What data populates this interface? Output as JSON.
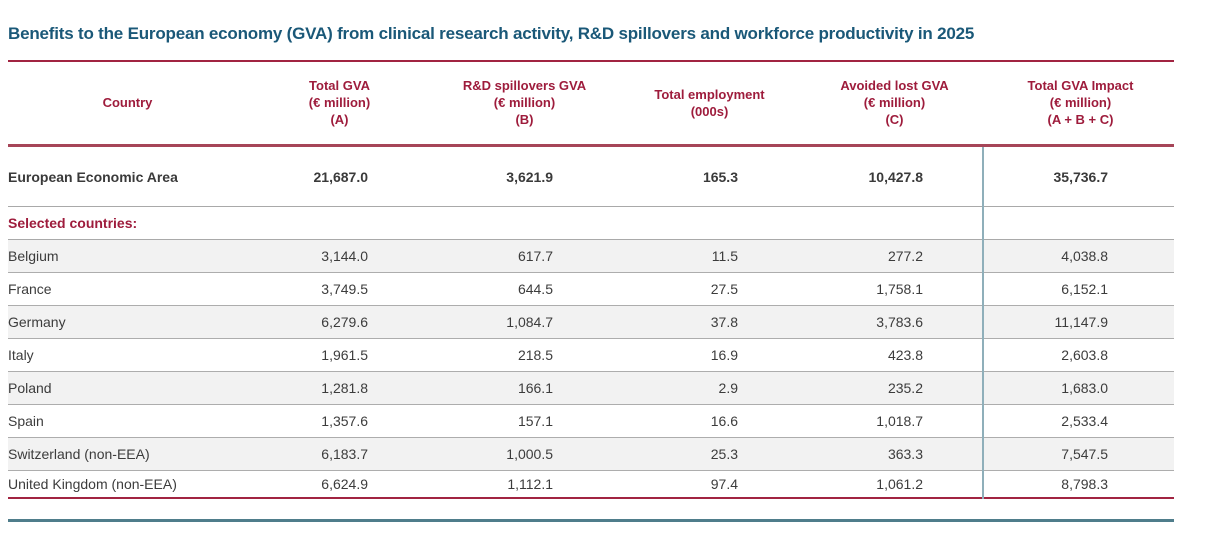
{
  "title": "Benefits to the European economy (GVA) from clinical research activity, R&D spillovers and workforce productivity in 2025",
  "colors": {
    "title_blue": "#1a5878",
    "header_maroon": "#9e1c3c",
    "rule_red": "#a12441",
    "header_rule": "#a64558",
    "row_border_gray": "#adadad",
    "stripe_gray": "#f2f2f2",
    "column_divider_blue": "#8fafba",
    "footer_teal": "#4f7d8b",
    "body_text": "#3c3c3c"
  },
  "table": {
    "columns": [
      {
        "id": "country",
        "lines": [
          "Country"
        ]
      },
      {
        "id": "total_gva",
        "lines": [
          "Total GVA",
          "(€ million)",
          "(A)"
        ]
      },
      {
        "id": "rd_spillovers_gva",
        "lines": [
          "R&D spillovers GVA",
          "(€ million)",
          "(B)"
        ]
      },
      {
        "id": "total_employment",
        "lines": [
          "Total employment",
          "(000s)"
        ]
      },
      {
        "id": "avoided_lost_gva",
        "lines": [
          "Avoided lost GVA",
          "(€ million)",
          "(C)"
        ]
      },
      {
        "id": "total_gva_impact",
        "lines": [
          "Total GVA Impact",
          "(€ million)",
          "(A + B + C)"
        ]
      }
    ],
    "summary_row": {
      "country": "European Economic Area",
      "values": [
        "21,687.0",
        "3,621.9",
        "165.3",
        "10,427.8",
        "35,736.7"
      ]
    },
    "section_label": "Selected countries:",
    "rows": [
      {
        "country": "Belgium",
        "values": [
          "3,144.0",
          "617.7",
          "11.5",
          "277.2",
          "4,038.8"
        ]
      },
      {
        "country": "France",
        "values": [
          "3,749.5",
          "644.5",
          "27.5",
          "1,758.1",
          "6,152.1"
        ]
      },
      {
        "country": "Germany",
        "values": [
          "6,279.6",
          "1,084.7",
          "37.8",
          "3,783.6",
          "11,147.9"
        ]
      },
      {
        "country": "Italy",
        "values": [
          "1,961.5",
          "218.5",
          "16.9",
          "423.8",
          "2,603.8"
        ]
      },
      {
        "country": "Poland",
        "values": [
          "1,281.8",
          "166.1",
          "2.9",
          "235.2",
          "1,683.0"
        ]
      },
      {
        "country": "Spain",
        "values": [
          "1,357.6",
          "157.1",
          "16.6",
          "1,018.7",
          "2,533.4"
        ]
      },
      {
        "country": "Switzerland (non-EEA)",
        "values": [
          "6,183.7",
          "1,000.5",
          "25.3",
          "363.3",
          "7,547.5"
        ]
      },
      {
        "country": "United Kingdom (non-EEA)",
        "values": [
          "6,624.9",
          "1,112.1",
          "97.4",
          "1,061.2",
          "8,798.3"
        ]
      }
    ]
  },
  "chart_data": {
    "type": "table",
    "title": "Benefits to the European economy (GVA) from clinical research activity, R&D spillovers and workforce productivity in 2025",
    "columns": [
      "Country",
      "Total GVA (€ million) (A)",
      "R&D spillovers GVA (€ million) (B)",
      "Total employment (000s)",
      "Avoided lost GVA (€ million) (C)",
      "Total GVA Impact (€ million) (A + B + C)"
    ],
    "rows": [
      [
        "European Economic Area",
        21687.0,
        3621.9,
        165.3,
        10427.8,
        35736.7
      ],
      [
        "Belgium",
        3144.0,
        617.7,
        11.5,
        277.2,
        4038.8
      ],
      [
        "France",
        3749.5,
        644.5,
        27.5,
        1758.1,
        6152.1
      ],
      [
        "Germany",
        6279.6,
        1084.7,
        37.8,
        3783.6,
        11147.9
      ],
      [
        "Italy",
        1961.5,
        218.5,
        16.9,
        423.8,
        2603.8
      ],
      [
        "Poland",
        1281.8,
        166.1,
        2.9,
        235.2,
        1683.0
      ],
      [
        "Spain",
        1357.6,
        157.1,
        16.6,
        1018.7,
        2533.4
      ],
      [
        "Switzerland (non-EEA)",
        6183.7,
        1000.5,
        25.3,
        363.3,
        7547.5
      ],
      [
        "United Kingdom (non-EEA)",
        6624.9,
        1112.1,
        97.4,
        1061.2,
        8798.3
      ]
    ]
  }
}
